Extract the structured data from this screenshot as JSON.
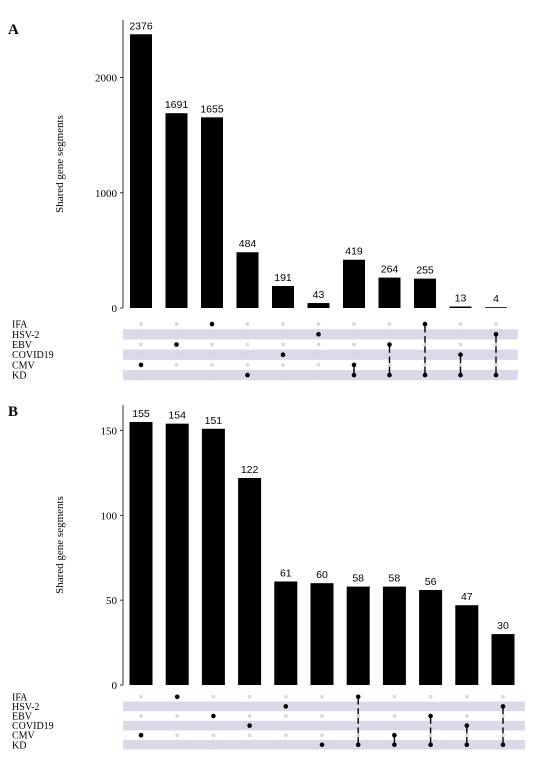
{
  "chart_data": [
    {
      "type": "bar",
      "panel": "A",
      "ylabel": "Shared gene segments",
      "ylim": [
        0,
        2500
      ],
      "yticks": [
        0,
        1000,
        2000
      ],
      "sets": [
        "IFA",
        "HSV-2",
        "EBV",
        "COVID19",
        "CMV",
        "KD"
      ],
      "values": [
        2376,
        1691,
        1655,
        484,
        191,
        43,
        419,
        264,
        255,
        13,
        4
      ],
      "intersections": [
        [
          "CMV"
        ],
        [
          "EBV"
        ],
        [
          "IFA"
        ],
        [
          "KD"
        ],
        [
          "COVID19"
        ],
        [
          "HSV-2"
        ],
        [
          "CMV",
          "KD"
        ],
        [
          "EBV",
          "KD"
        ],
        [
          "IFA",
          "KD"
        ],
        [
          "COVID19",
          "KD"
        ],
        [
          "HSV-2",
          "KD"
        ]
      ],
      "colors": {
        "bar": "#000000",
        "dot_active": "#000000",
        "dot_inactive": "#d9d9d9",
        "band": "#dcd8ea"
      }
    },
    {
      "type": "bar",
      "panel": "B",
      "ylabel": "Shared gene segments",
      "ylim": [
        0,
        165
      ],
      "yticks": [
        0,
        50,
        100,
        150
      ],
      "sets": [
        "IFA",
        "HSV-2",
        "EBV",
        "COVID19",
        "CMV",
        "KD"
      ],
      "values": [
        155,
        154,
        151,
        122,
        61,
        60,
        58,
        58,
        56,
        47,
        30
      ],
      "intersections": [
        [
          "CMV"
        ],
        [
          "IFA"
        ],
        [
          "EBV"
        ],
        [
          "COVID19"
        ],
        [
          "HSV-2"
        ],
        [
          "KD"
        ],
        [
          "IFA",
          "KD"
        ],
        [
          "CMV",
          "KD"
        ],
        [
          "EBV",
          "KD"
        ],
        [
          "COVID19",
          "KD"
        ],
        [
          "HSV-2",
          "KD"
        ]
      ],
      "colors": {
        "bar": "#000000",
        "dot_active": "#000000",
        "dot_inactive": "#d9d9d9",
        "band": "#dcd8ea"
      }
    }
  ]
}
